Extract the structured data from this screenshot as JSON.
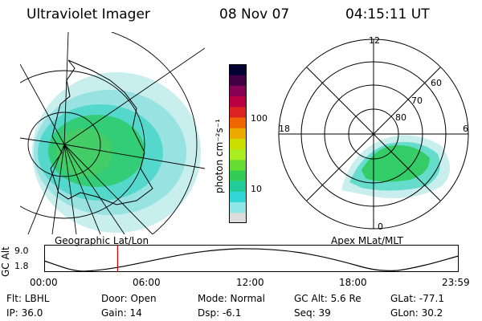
{
  "header": {
    "instrument": "Ultraviolet Imager",
    "date": "08 Nov 07",
    "time": "04:15:11 UT"
  },
  "geo_panel": {
    "label": "Geographic Lat/Lon"
  },
  "apex_panel": {
    "label": "Apex MLat/MLT",
    "mlt_labels": {
      "top": "12",
      "left": "18",
      "right": "6",
      "bottom": "0"
    },
    "mlat_labels": [
      "60",
      "70",
      "80"
    ]
  },
  "colorbar": {
    "unit": "photon cm⁻²s⁻¹",
    "ticks": [
      "100",
      "10"
    ],
    "colors": [
      "#dcdcdc",
      "#8fe6e6",
      "#33d6d6",
      "#22cc99",
      "#33cc55",
      "#66dd33",
      "#aaee22",
      "#ccdd00",
      "#eeaa00",
      "#ee6600",
      "#dd2222",
      "#bb0044",
      "#880055",
      "#440044",
      "#000033"
    ]
  },
  "timeline": {
    "axis_label": "GC Alt",
    "y_ticks": [
      "9.0",
      "1.8"
    ],
    "x_ticks": [
      "00:00",
      "06:00",
      "12:00",
      "18:00",
      "23:59"
    ],
    "cursor_hour": 4.25,
    "cursor_color": "#cc0000"
  },
  "info": {
    "flt": "Flt: LBHL",
    "ip": "IP: 36.0",
    "door": "Door: Open",
    "gain": "Gain: 14",
    "mode": "Mode: Normal",
    "dsp": "Dsp:   -6.1",
    "gcalt": "GC Alt: 5.6 Re",
    "seq": "Seq: 39",
    "glat": "GLat: -77.1",
    "glon": "GLon:  30.2"
  }
}
